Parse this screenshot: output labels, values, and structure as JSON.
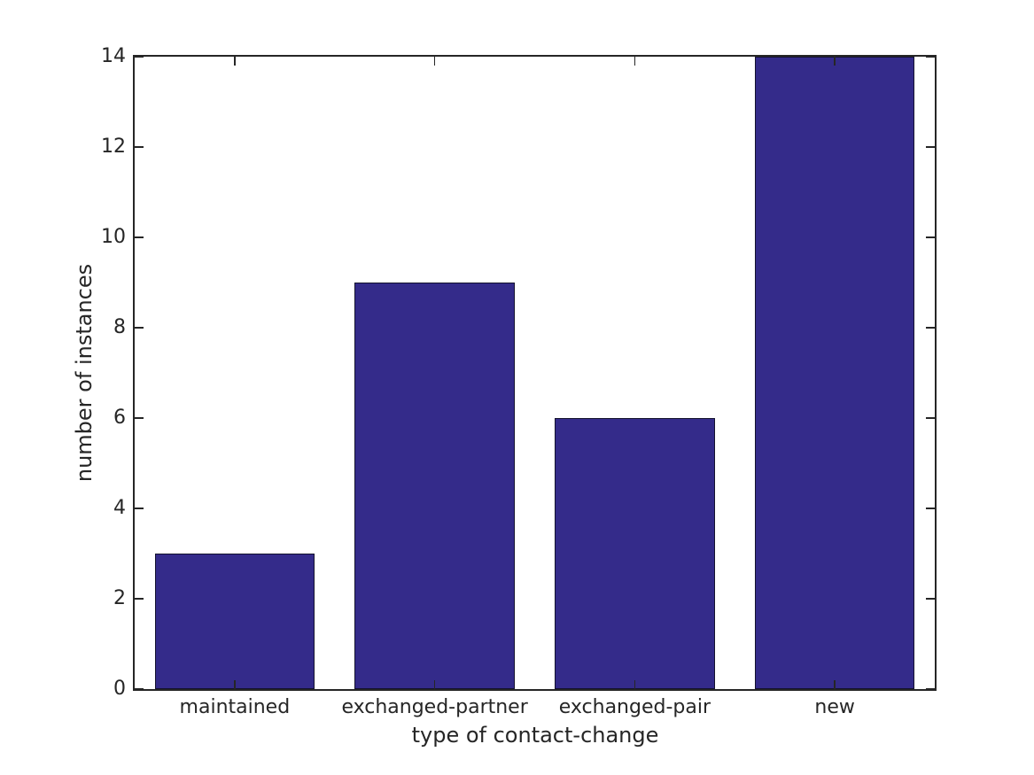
{
  "chart_data": {
    "type": "bar",
    "categories": [
      "maintained",
      "exchanged-partner",
      "exchanged-pair",
      "new"
    ],
    "values": [
      3,
      9,
      6,
      14
    ],
    "title": "",
    "xlabel": "type of contact-change",
    "ylabel": "number of instances",
    "ylim": [
      0,
      14
    ],
    "yticks": [
      0,
      2,
      4,
      6,
      8,
      10,
      12,
      14
    ],
    "bar_width_fraction": 0.8,
    "bar_color": "#342b8a",
    "bar_edge_color": "#14122e",
    "axis_color": "#262626",
    "text_color": "#262626",
    "background_color": "#ffffff",
    "grid": false,
    "legend": null,
    "tick_direction": "in",
    "box": true
  }
}
